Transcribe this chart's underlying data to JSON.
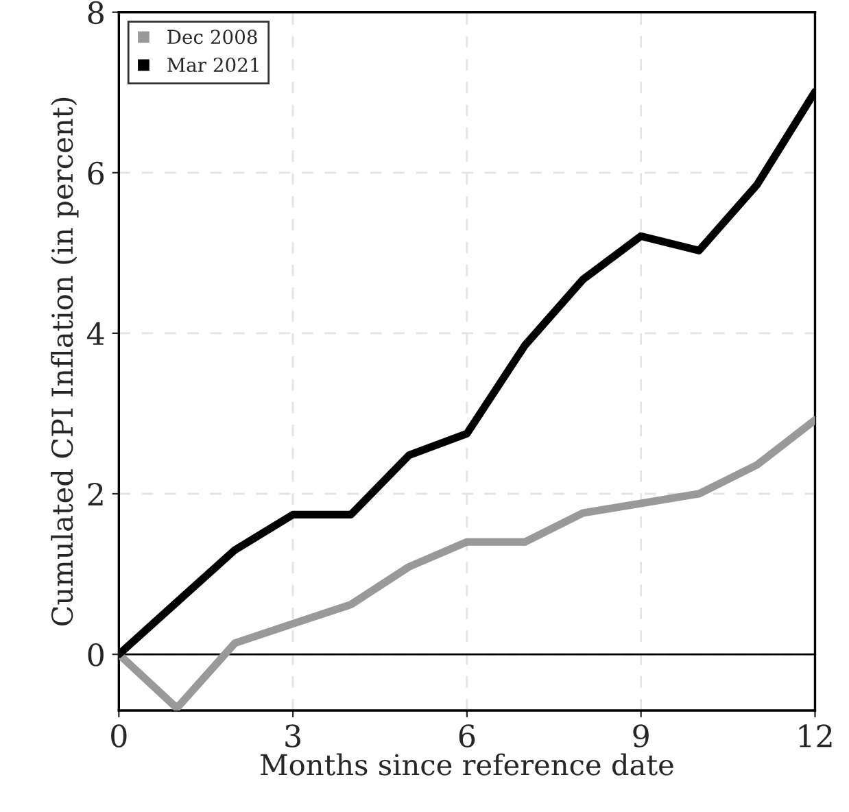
{
  "chart_data": {
    "type": "line",
    "xlabel": "Months since reference date",
    "ylabel": "Cumulated CPI Inflation (in percent)",
    "x": [
      0,
      1,
      2,
      3,
      4,
      5,
      6,
      7,
      8,
      9,
      10,
      11,
      12
    ],
    "series": [
      {
        "name": "Dec 2008",
        "color": "#999999",
        "values": [
          0,
          -0.67,
          0.14,
          0.38,
          0.62,
          1.09,
          1.4,
          1.4,
          1.76,
          1.88,
          2.0,
          2.36,
          2.92
        ]
      },
      {
        "name": "Mar 2021",
        "color": "#000000",
        "values": [
          0,
          0.65,
          1.3,
          1.74,
          1.74,
          2.48,
          2.75,
          3.85,
          4.67,
          5.21,
          5.03,
          5.85,
          7.01
        ]
      }
    ],
    "xlim": [
      0,
      12
    ],
    "xticks": [
      0,
      3,
      6,
      9,
      12
    ],
    "ylim": [
      -0.7,
      8
    ],
    "yticks": [
      0,
      2,
      4,
      6,
      8
    ],
    "ref_lines": [
      {
        "axis": "y",
        "value": 0,
        "color": "#000000"
      }
    ],
    "grid": true,
    "legend": "top left",
    "line_style": "solid"
  }
}
